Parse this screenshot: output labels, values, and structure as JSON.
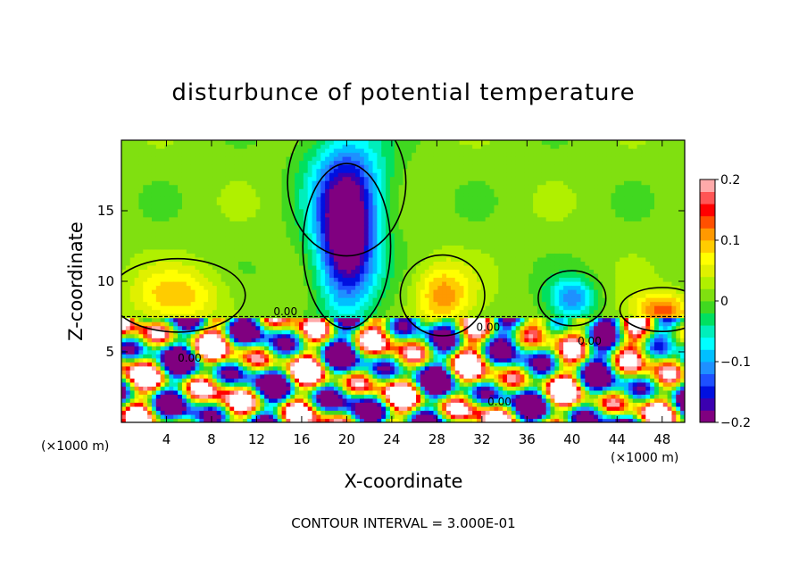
{
  "chart_data": {
    "type": "heatmap",
    "title": "disturbunce of potential temperature",
    "xlabel": "X-coordinate",
    "ylabel": "Z-coordinate",
    "x_unit_left": "(×1000 m)",
    "x_unit_right": "(×1000 m)",
    "xlim": [
      0,
      50
    ],
    "ylim": [
      0,
      20
    ],
    "x_ticks": [
      4,
      8,
      12,
      16,
      20,
      24,
      28,
      32,
      36,
      40,
      44,
      48
    ],
    "x_tick_labels": [
      "4",
      "8",
      "12",
      "16",
      "20",
      "24",
      "28",
      "32",
      "36",
      "40",
      "44",
      "48"
    ],
    "y_ticks": [
      5,
      10,
      15
    ],
    "y_tick_labels": [
      "5",
      "10",
      "15"
    ],
    "colorbar": {
      "range": [
        -0.2,
        0.2
      ],
      "labels": [
        "0.2",
        "0.1",
        "0",
        "−0.1",
        "−0.2"
      ],
      "label_values": [
        0.2,
        0.1,
        0,
        -0.1,
        -0.2
      ],
      "colors": [
        "#800080",
        "#3b00b0",
        "#0010e0",
        "#1e50ff",
        "#1e90ff",
        "#00bfff",
        "#00ffff",
        "#00eebb",
        "#00e060",
        "#40d820",
        "#80e010",
        "#b0f000",
        "#e0f000",
        "#ffff00",
        "#ffcc00",
        "#ff9900",
        "#ff5000",
        "#ff0000",
        "#ff5555",
        "#ffaaaa"
      ]
    },
    "contour_interval_text": "CONTOUR INTERVAL = 3.000E-01",
    "contour_labels": [
      "0.00",
      "0.00",
      "0.00",
      "0.00",
      "0.00"
    ],
    "background_level": 0.01,
    "features": [
      {
        "name": "cold plume aloft",
        "x": 20,
        "z": 12.5,
        "sx": 2.6,
        "sz": 4.5,
        "value": -0.22
      },
      {
        "name": "cold column upper",
        "x": 20,
        "z": 17,
        "sx": 3.5,
        "sz": 4,
        "value": -0.12
      },
      {
        "name": "cold anomaly right",
        "x": 40,
        "z": 8.8,
        "sx": 2.0,
        "sz": 1.5,
        "value": -0.12
      },
      {
        "name": "warm anomaly left",
        "x": 5,
        "z": 9,
        "sx": 4,
        "sz": 2,
        "value": 0.08
      },
      {
        "name": "warm anomaly center",
        "x": 28.5,
        "z": 9,
        "sx": 2.5,
        "sz": 2.2,
        "value": 0.1
      },
      {
        "name": "warm anomaly right",
        "x": 48,
        "z": 8,
        "sx": 2.5,
        "sz": 1.2,
        "value": 0.12
      }
    ],
    "lower_layer": {
      "z_top": 7.5,
      "note": "turbulent layer with mixed positive and negative values exceeding color range"
    }
  }
}
